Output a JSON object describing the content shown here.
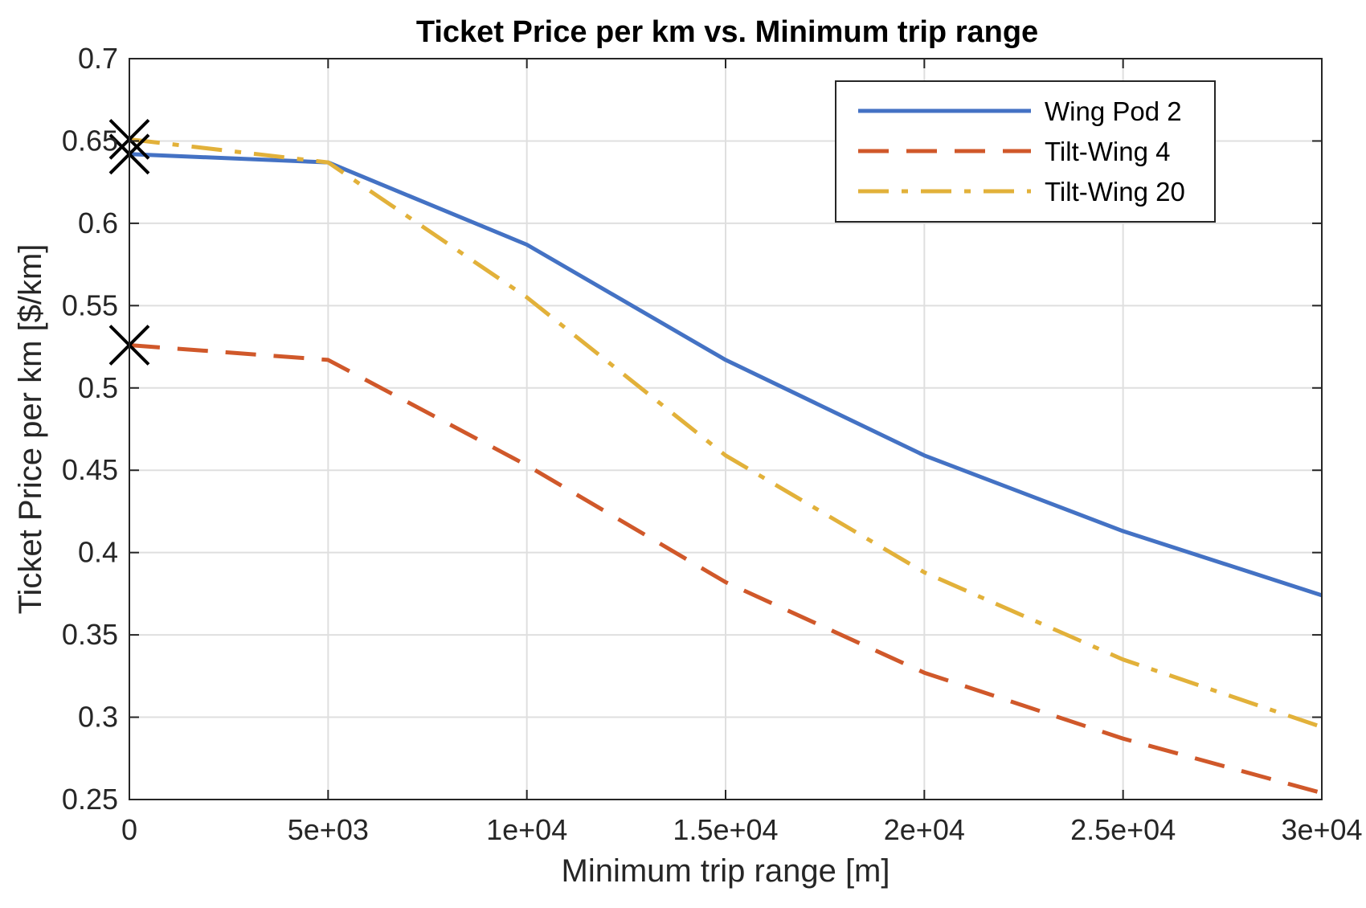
{
  "chart_data": {
    "type": "line",
    "title": "Ticket Price per km vs. Minimum trip range",
    "xlabel": "Minimum trip range [m]",
    "ylabel": "Ticket Price per km [$/km]",
    "xlim": [
      0,
      30000
    ],
    "ylim": [
      0.25,
      0.7
    ],
    "grid": true,
    "legend_position": "top-right",
    "x_ticks": [
      0,
      5000,
      10000,
      15000,
      20000,
      25000,
      30000
    ],
    "x_tick_labels": [
      "0",
      "5e+03",
      "1e+04",
      "1.5e+04",
      "2e+04",
      "2.5e+04",
      "3e+04"
    ],
    "y_ticks": [
      0.25,
      0.3,
      0.35,
      0.4,
      0.45,
      0.5,
      0.55,
      0.6,
      0.65,
      0.7
    ],
    "y_tick_labels": [
      "0.25",
      "0.3",
      "0.35",
      "0.4",
      "0.45",
      "0.5",
      "0.55",
      "0.6",
      "0.65",
      "0.7"
    ],
    "x": [
      0,
      5000,
      10000,
      15000,
      20000,
      25000,
      30000
    ],
    "series": [
      {
        "name": "Wing Pod 2",
        "values": [
          0.642,
          0.637,
          0.587,
          0.517,
          0.459,
          0.413,
          0.374
        ],
        "color": "#4472C4",
        "dash": "solid",
        "marker_at_start": 0.642
      },
      {
        "name": "Tilt-Wing 4",
        "values": [
          0.526,
          0.517,
          0.453,
          0.382,
          0.327,
          0.287,
          0.254
        ],
        "color": "#D0582A",
        "dash": "dashed",
        "marker_at_start": 0.526
      },
      {
        "name": "Tilt-Wing 20",
        "values": [
          0.651,
          0.637,
          0.555,
          0.459,
          0.388,
          0.335,
          0.294
        ],
        "color": "#E2B13A",
        "dash": "dashdot",
        "marker_at_start": 0.651
      }
    ]
  }
}
